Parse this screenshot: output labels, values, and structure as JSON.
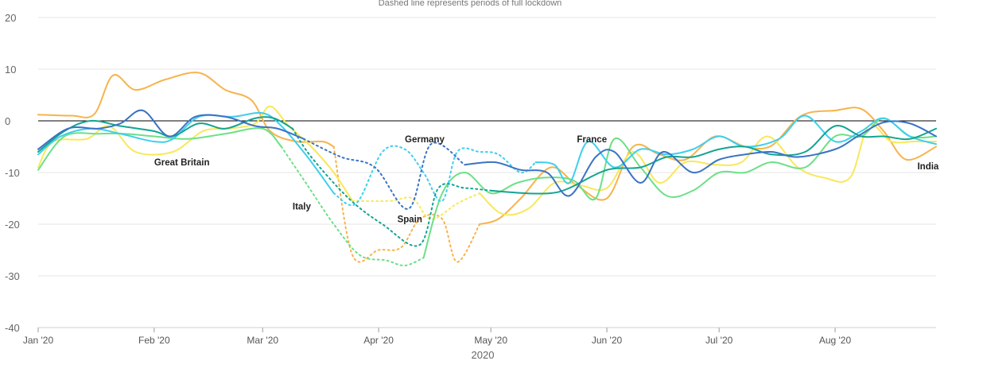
{
  "chart_data": {
    "type": "line",
    "subtitle": "Dashed line represents periods of full lockdown",
    "xlabel": "2020",
    "ylabel": "",
    "ylim": [
      -40,
      20
    ],
    "yticks": [
      20,
      10,
      0,
      -10,
      -20,
      -30,
      -40
    ],
    "xlim": [
      "2020-01-01",
      "2020-08-28"
    ],
    "xticks": [
      {
        "date": "2020-01-01",
        "label": "Jan '20"
      },
      {
        "date": "2020-02-01",
        "label": "Feb '20"
      },
      {
        "date": "2020-03-01",
        "label": "Mar '20"
      },
      {
        "date": "2020-04-01",
        "label": "Apr '20"
      },
      {
        "date": "2020-05-01",
        "label": "May '20"
      },
      {
        "date": "2020-06-01",
        "label": "Jun '20"
      },
      {
        "date": "2020-07-01",
        "label": "Jul '20"
      },
      {
        "date": "2020-08-01",
        "label": "Aug '20"
      }
    ],
    "grid": true,
    "zero_line": true,
    "series": [
      {
        "name": "India",
        "color": "#f7b34c",
        "label_at": {
          "date": "2020-08-23",
          "value": -8.8
        },
        "lockdown": [
          "2020-03-25",
          "2020-05-01"
        ],
        "points": [
          [
            "2020-01-01",
            1.2
          ],
          [
            "2020-01-10",
            1.0
          ],
          [
            "2020-01-16",
            1.3
          ],
          [
            "2020-01-21",
            8.8
          ],
          [
            "2020-01-27",
            6.0
          ],
          [
            "2020-02-04",
            8.0
          ],
          [
            "2020-02-13",
            9.3
          ],
          [
            "2020-02-20",
            6.0
          ],
          [
            "2020-02-27",
            4.0
          ],
          [
            "2020-03-03",
            -2.0
          ],
          [
            "2020-03-10",
            -4.0
          ],
          [
            "2020-03-17",
            -4.0
          ],
          [
            "2020-03-20",
            -5.0
          ],
          [
            "2020-03-25",
            -26.0
          ],
          [
            "2020-04-01",
            -25.0
          ],
          [
            "2020-04-07",
            -24.5
          ],
          [
            "2020-04-12",
            -19.0
          ],
          [
            "2020-04-18",
            -19.0
          ],
          [
            "2020-04-22",
            -27.3
          ],
          [
            "2020-04-28",
            -20.0
          ],
          [
            "2020-05-03",
            -19.0
          ],
          [
            "2020-05-09",
            -15.0
          ],
          [
            "2020-05-17",
            -9.0
          ],
          [
            "2020-05-24",
            -12.5
          ],
          [
            "2020-06-01",
            -15.0
          ],
          [
            "2020-06-08",
            -5.0
          ],
          [
            "2020-06-15",
            -6.5
          ],
          [
            "2020-06-22",
            -7.5
          ],
          [
            "2020-06-30",
            -3.0
          ],
          [
            "2020-07-08",
            -5.0
          ],
          [
            "2020-07-15",
            -4.8
          ],
          [
            "2020-07-23",
            1.0
          ],
          [
            "2020-08-01",
            2.0
          ],
          [
            "2020-08-08",
            2.3
          ],
          [
            "2020-08-14",
            -2.0
          ],
          [
            "2020-08-20",
            -7.5
          ],
          [
            "2020-08-28",
            -5.0
          ]
        ]
      },
      {
        "name": "",
        "color": "#f8e85a",
        "lockdown": [
          "2020-04-04",
          "2020-05-03"
        ],
        "points": [
          [
            "2020-01-01",
            -9.0
          ],
          [
            "2020-01-05",
            -4.0
          ],
          [
            "2020-01-14",
            -3.5
          ],
          [
            "2020-01-20",
            -1.0
          ],
          [
            "2020-01-27",
            -6.0
          ],
          [
            "2020-02-06",
            -6.0
          ],
          [
            "2020-02-14",
            -2.0
          ],
          [
            "2020-02-21",
            -1.5
          ],
          [
            "2020-02-28",
            -0.5
          ],
          [
            "2020-03-03",
            2.8
          ],
          [
            "2020-03-08",
            -1.0
          ],
          [
            "2020-03-14",
            -5.0
          ],
          [
            "2020-03-20",
            -10.0
          ],
          [
            "2020-03-25",
            -15.5
          ],
          [
            "2020-04-04",
            -15.5
          ],
          [
            "2020-04-10",
            -15.0
          ],
          [
            "2020-04-15",
            -19.0
          ],
          [
            "2020-04-22",
            -16.0
          ],
          [
            "2020-04-28",
            -14.0
          ],
          [
            "2020-05-04",
            -18.0
          ],
          [
            "2020-05-11",
            -17.0
          ],
          [
            "2020-05-18",
            -12.0
          ],
          [
            "2020-05-25",
            -12.5
          ],
          [
            "2020-06-01",
            -13.0
          ],
          [
            "2020-06-08",
            -6.0
          ],
          [
            "2020-06-15",
            -12.0
          ],
          [
            "2020-06-22",
            -8.0
          ],
          [
            "2020-06-30",
            -8.5
          ],
          [
            "2020-07-07",
            -8.0
          ],
          [
            "2020-07-14",
            -3.0
          ],
          [
            "2020-07-22",
            -9.0
          ],
          [
            "2020-07-29",
            -11.0
          ],
          [
            "2020-08-05",
            -11.0
          ],
          [
            "2020-08-10",
            -1.0
          ],
          [
            "2020-08-16",
            -4.0
          ],
          [
            "2020-08-22",
            -4.0
          ],
          [
            "2020-08-28",
            -4.0
          ]
        ]
      },
      {
        "name": "Italy",
        "color": "#6ce087",
        "label_at": {
          "date": "2020-03-09",
          "value": -16.5
        },
        "lockdown": [
          "2020-03-13",
          "2020-04-13"
        ],
        "points": [
          [
            "2020-01-01",
            -9.5
          ],
          [
            "2020-01-08",
            -3.0
          ],
          [
            "2020-01-17",
            -2.5
          ],
          [
            "2020-01-24",
            -2.5
          ],
          [
            "2020-02-01",
            -3.0
          ],
          [
            "2020-02-10",
            -3.5
          ],
          [
            "2020-02-20",
            -2.5
          ],
          [
            "2020-03-01",
            -1.5
          ],
          [
            "2020-03-06",
            -5.0
          ],
          [
            "2020-03-13",
            -12.5
          ],
          [
            "2020-03-20",
            -20.0
          ],
          [
            "2020-03-27",
            -26.0
          ],
          [
            "2020-04-03",
            -27.0
          ],
          [
            "2020-04-08",
            -28.0
          ],
          [
            "2020-04-13",
            -26.5
          ],
          [
            "2020-04-18",
            -14.0
          ],
          [
            "2020-04-24",
            -10.0
          ],
          [
            "2020-05-01",
            -14.0
          ],
          [
            "2020-05-08",
            -12.0
          ],
          [
            "2020-05-15",
            -11.0
          ],
          [
            "2020-05-23",
            -11.5
          ],
          [
            "2020-05-29",
            -15.0
          ],
          [
            "2020-06-03",
            -3.5
          ],
          [
            "2020-06-10",
            -9.0
          ],
          [
            "2020-06-17",
            -14.5
          ],
          [
            "2020-06-24",
            -13.5
          ],
          [
            "2020-07-01",
            -10.0
          ],
          [
            "2020-07-08",
            -10.0
          ],
          [
            "2020-07-15",
            -8.0
          ],
          [
            "2020-07-24",
            -9.0
          ],
          [
            "2020-08-01",
            -3.0
          ],
          [
            "2020-08-08",
            -3.0
          ],
          [
            "2020-08-14",
            0.5
          ],
          [
            "2020-08-21",
            -3.0
          ],
          [
            "2020-08-28",
            -3.0
          ]
        ]
      },
      {
        "name": "Great Britain",
        "color": "#3ecfee",
        "label_at": {
          "date": "2020-02-01",
          "value": -8.0
        },
        "lockdown": [
          "2020-03-23",
          "2020-05-13"
        ],
        "points": [
          [
            "2020-01-01",
            -6.5
          ],
          [
            "2020-01-07",
            -3.0
          ],
          [
            "2020-01-15",
            -1.5
          ],
          [
            "2020-01-23",
            -2.5
          ],
          [
            "2020-02-01",
            -4.0
          ],
          [
            "2020-02-06",
            -3.5
          ],
          [
            "2020-02-13",
            0.8
          ],
          [
            "2020-02-22",
            0.8
          ],
          [
            "2020-03-01",
            1.5
          ],
          [
            "2020-03-06",
            -1.0
          ],
          [
            "2020-03-13",
            -7.0
          ],
          [
            "2020-03-20",
            -14.0
          ],
          [
            "2020-03-26",
            -16.0
          ],
          [
            "2020-04-02",
            -6.0
          ],
          [
            "2020-04-08",
            -5.5
          ],
          [
            "2020-04-13",
            -10.0
          ],
          [
            "2020-04-18",
            -15.5
          ],
          [
            "2020-04-22",
            -6.0
          ],
          [
            "2020-04-28",
            -6.0
          ],
          [
            "2020-05-03",
            -6.5
          ],
          [
            "2020-05-09",
            -10.0
          ],
          [
            "2020-05-13",
            -8.0
          ],
          [
            "2020-05-18",
            -8.5
          ],
          [
            "2020-05-22",
            -12.0
          ],
          [
            "2020-05-27",
            -4.0
          ],
          [
            "2020-06-03",
            -9.0
          ],
          [
            "2020-06-10",
            -5.5
          ],
          [
            "2020-06-17",
            -6.5
          ],
          [
            "2020-06-24",
            -5.5
          ],
          [
            "2020-07-01",
            -3.0
          ],
          [
            "2020-07-08",
            -5.0
          ],
          [
            "2020-07-17",
            -3.5
          ],
          [
            "2020-07-24",
            1.0
          ],
          [
            "2020-08-01",
            -4.0
          ],
          [
            "2020-08-08",
            -2.0
          ],
          [
            "2020-08-14",
            0.5
          ],
          [
            "2020-08-21",
            -3.0
          ],
          [
            "2020-08-28",
            -4.5
          ]
        ]
      },
      {
        "name": "Spain",
        "color": "#13a591",
        "label_at": {
          "date": "2020-04-06",
          "value": -19.0
        },
        "lockdown": [
          "2020-03-14",
          "2020-05-01"
        ],
        "points": [
          [
            "2020-01-01",
            -6.0
          ],
          [
            "2020-01-08",
            -2.0
          ],
          [
            "2020-01-15",
            0.0
          ],
          [
            "2020-01-23",
            -1.0
          ],
          [
            "2020-02-01",
            -2.0
          ],
          [
            "2020-02-06",
            -3.0
          ],
          [
            "2020-02-13",
            -0.5
          ],
          [
            "2020-02-20",
            -1.5
          ],
          [
            "2020-02-28",
            0.5
          ],
          [
            "2020-03-04",
            0.5
          ],
          [
            "2020-03-09",
            -1.5
          ],
          [
            "2020-03-14",
            -7.0
          ],
          [
            "2020-03-24",
            -15.0
          ],
          [
            "2020-04-02",
            -20.0
          ],
          [
            "2020-04-12",
            -24.0
          ],
          [
            "2020-04-17",
            -13.0
          ],
          [
            "2020-04-24",
            -13.0
          ],
          [
            "2020-05-01",
            -13.5
          ],
          [
            "2020-05-10",
            -14.0
          ],
          [
            "2020-05-17",
            -14.0
          ],
          [
            "2020-05-22",
            -13.0
          ],
          [
            "2020-06-01",
            -9.5
          ],
          [
            "2020-06-10",
            -9.0
          ],
          [
            "2020-06-17",
            -7.0
          ],
          [
            "2020-06-24",
            -7.0
          ],
          [
            "2020-07-01",
            -5.5
          ],
          [
            "2020-07-08",
            -5.0
          ],
          [
            "2020-07-15",
            -6.5
          ],
          [
            "2020-07-24",
            -6.0
          ],
          [
            "2020-08-01",
            -1.0
          ],
          [
            "2020-08-08",
            -3.0
          ],
          [
            "2020-08-14",
            -3.0
          ],
          [
            "2020-08-21",
            -3.5
          ],
          [
            "2020-08-28",
            -1.5
          ]
        ]
      },
      {
        "name": "Germany",
        "color": "#3b73c4",
        "label_at": {
          "date": "2020-04-08",
          "value": -3.5
        },
        "lockdown": [
          "2020-03-22",
          "2020-04-24"
        ],
        "points": [
          [
            "2020-01-01",
            -5.5
          ],
          [
            "2020-01-09",
            -1.5
          ],
          [
            "2020-01-17",
            -1.5
          ],
          [
            "2020-01-23",
            -0.5
          ],
          [
            "2020-01-29",
            2.0
          ],
          [
            "2020-02-05",
            -3.0
          ],
          [
            "2020-02-12",
            0.8
          ],
          [
            "2020-02-20",
            0.8
          ],
          [
            "2020-02-28",
            -1.0
          ],
          [
            "2020-03-05",
            -1.5
          ],
          [
            "2020-03-12",
            -3.5
          ],
          [
            "2020-03-22",
            -7.0
          ],
          [
            "2020-03-31",
            -9.0
          ],
          [
            "2020-04-09",
            -17.0
          ],
          [
            "2020-04-15",
            -4.5
          ],
          [
            "2020-04-24",
            -8.5
          ],
          [
            "2020-05-02",
            -8.0
          ],
          [
            "2020-05-09",
            -9.5
          ],
          [
            "2020-05-16",
            -10.0
          ],
          [
            "2020-05-22",
            -14.5
          ],
          [
            "2020-05-29",
            -7.0
          ],
          [
            "2020-06-03",
            -6.0
          ],
          [
            "2020-06-10",
            -12.0
          ],
          [
            "2020-06-16",
            -6.0
          ],
          [
            "2020-06-24",
            -10.0
          ],
          [
            "2020-07-01",
            -7.5
          ],
          [
            "2020-07-08",
            -6.5
          ],
          [
            "2020-07-15",
            -6.0
          ],
          [
            "2020-07-22",
            -7.0
          ],
          [
            "2020-08-01",
            -5.5
          ],
          [
            "2020-08-07",
            -3.0
          ],
          [
            "2020-08-14",
            -0.3
          ],
          [
            "2020-08-21",
            -0.5
          ],
          [
            "2020-08-28",
            -3.0
          ]
        ]
      },
      {
        "name": "France",
        "color": "#4ed5f2",
        "label_at": {
          "date": "2020-05-24",
          "value": -3.5
        },
        "points": []
      }
    ]
  }
}
